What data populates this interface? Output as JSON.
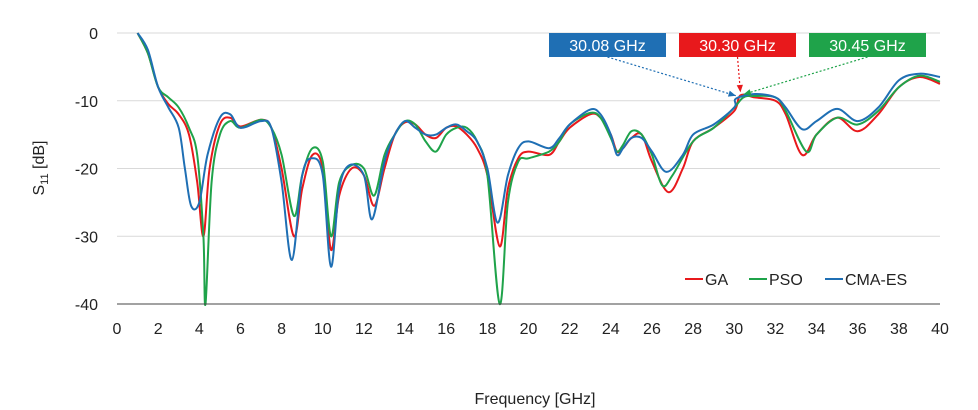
{
  "chart_data": {
    "type": "line",
    "xlabel": "Frequency [GHz]",
    "ylabel_main": "S",
    "ylabel_sub": "11",
    "ylabel_unit": " [dB]",
    "xlim": [
      0,
      40
    ],
    "ylim": [
      -40,
      0
    ],
    "xticks": [
      0,
      2,
      4,
      6,
      8,
      10,
      12,
      14,
      16,
      18,
      20,
      22,
      24,
      26,
      28,
      30,
      32,
      34,
      36,
      38,
      40
    ],
    "yticks": [
      0,
      -10,
      -20,
      -30,
      -40
    ],
    "grid": "horizontal",
    "legend_position": "bottom-right",
    "series": [
      {
        "name": "GA",
        "color": "#e8191c",
        "points": [
          [
            1,
            0
          ],
          [
            1.5,
            -3
          ],
          [
            2,
            -8
          ],
          [
            2.5,
            -10.5
          ],
          [
            3,
            -12
          ],
          [
            3.5,
            -15
          ],
          [
            3.9,
            -22
          ],
          [
            4.2,
            -30
          ],
          [
            4.5,
            -20
          ],
          [
            5,
            -13.5
          ],
          [
            5.5,
            -12.5
          ],
          [
            6,
            -13.8
          ],
          [
            7,
            -12.8
          ],
          [
            7.5,
            -14
          ],
          [
            8,
            -20
          ],
          [
            8.6,
            -30
          ],
          [
            9,
            -23
          ],
          [
            9.5,
            -18
          ],
          [
            10,
            -20
          ],
          [
            10.4,
            -32
          ],
          [
            10.8,
            -24
          ],
          [
            11.4,
            -20
          ],
          [
            12,
            -21
          ],
          [
            12.5,
            -25.5
          ],
          [
            13,
            -20
          ],
          [
            13.5,
            -15
          ],
          [
            14,
            -13.2
          ],
          [
            14.5,
            -13.5
          ],
          [
            15,
            -15
          ],
          [
            15.5,
            -15.5
          ],
          [
            16,
            -14
          ],
          [
            16.5,
            -13.8
          ],
          [
            17,
            -15
          ],
          [
            17.5,
            -17
          ],
          [
            18,
            -21
          ],
          [
            18.6,
            -31.5
          ],
          [
            19,
            -23
          ],
          [
            19.5,
            -18.5
          ],
          [
            20,
            -17.5
          ],
          [
            21,
            -18
          ],
          [
            21.5,
            -16
          ],
          [
            22,
            -14
          ],
          [
            23,
            -12
          ],
          [
            23.5,
            -12.5
          ],
          [
            24,
            -15
          ],
          [
            24.3,
            -17.5
          ],
          [
            24.6,
            -17
          ],
          [
            25,
            -15.5
          ],
          [
            25.5,
            -15
          ],
          [
            26,
            -19
          ],
          [
            26.8,
            -23.5
          ],
          [
            27.5,
            -20
          ],
          [
            28,
            -16
          ],
          [
            29,
            -14
          ],
          [
            30,
            -11.5
          ],
          [
            30.3,
            -9.2
          ],
          [
            31,
            -9.5
          ],
          [
            32,
            -10
          ],
          [
            32.5,
            -12
          ],
          [
            33.3,
            -18
          ],
          [
            34,
            -15
          ],
          [
            35,
            -12.5
          ],
          [
            36,
            -14.5
          ],
          [
            37,
            -12
          ],
          [
            38,
            -8
          ],
          [
            39,
            -6.5
          ],
          [
            40,
            -7.5
          ]
        ]
      },
      {
        "name": "PSO",
        "color": "#1fa34a",
        "points": [
          [
            1,
            0
          ],
          [
            1.5,
            -3
          ],
          [
            2,
            -8
          ],
          [
            2.5,
            -9.5
          ],
          [
            3,
            -11
          ],
          [
            3.5,
            -14
          ],
          [
            3.9,
            -18
          ],
          [
            4.2,
            -30
          ],
          [
            4.3,
            -40
          ],
          [
            4.6,
            -22
          ],
          [
            5,
            -15
          ],
          [
            5.5,
            -13
          ],
          [
            6,
            -14
          ],
          [
            7,
            -12.8
          ],
          [
            7.5,
            -14
          ],
          [
            8,
            -18
          ],
          [
            8.6,
            -27
          ],
          [
            9,
            -21
          ],
          [
            9.5,
            -17
          ],
          [
            10,
            -19
          ],
          [
            10.4,
            -30
          ],
          [
            10.8,
            -22
          ],
          [
            11.4,
            -19.5
          ],
          [
            12,
            -20
          ],
          [
            12.5,
            -24
          ],
          [
            13,
            -18
          ],
          [
            13.5,
            -15
          ],
          [
            14,
            -13
          ],
          [
            14.5,
            -13.5
          ],
          [
            15,
            -16
          ],
          [
            15.5,
            -17.5
          ],
          [
            16,
            -15
          ],
          [
            16.5,
            -14
          ],
          [
            17,
            -14
          ],
          [
            17.5,
            -16
          ],
          [
            18,
            -21
          ],
          [
            18.6,
            -40
          ],
          [
            19,
            -25
          ],
          [
            19.5,
            -19
          ],
          [
            20,
            -18.5
          ],
          [
            21,
            -17.5
          ],
          [
            21.5,
            -16
          ],
          [
            22,
            -13.5
          ],
          [
            23,
            -11.8
          ],
          [
            23.5,
            -12.5
          ],
          [
            24,
            -15.5
          ],
          [
            24.3,
            -17.5
          ],
          [
            24.6,
            -16.5
          ],
          [
            25,
            -14.5
          ],
          [
            25.5,
            -15
          ],
          [
            26,
            -18
          ],
          [
            26.5,
            -22.5
          ],
          [
            27,
            -21
          ],
          [
            28,
            -16
          ],
          [
            29,
            -14
          ],
          [
            30,
            -11
          ],
          [
            30.45,
            -9.5
          ],
          [
            31,
            -9.3
          ],
          [
            32,
            -9.5
          ],
          [
            32.5,
            -11.5
          ],
          [
            33.5,
            -17.5
          ],
          [
            34,
            -15
          ],
          [
            35,
            -12.5
          ],
          [
            36,
            -13.5
          ],
          [
            37,
            -11.5
          ],
          [
            38,
            -8
          ],
          [
            39,
            -6.3
          ],
          [
            40,
            -7.2
          ]
        ]
      },
      {
        "name": "CMA-ES",
        "color": "#1f6fb4",
        "points": [
          [
            1,
            0
          ],
          [
            1.5,
            -2.5
          ],
          [
            2,
            -8
          ],
          [
            2.5,
            -11
          ],
          [
            3,
            -14
          ],
          [
            3.3,
            -20
          ],
          [
            3.6,
            -25.5
          ],
          [
            4,
            -25
          ],
          [
            4.4,
            -18
          ],
          [
            5,
            -12.5
          ],
          [
            5.5,
            -12
          ],
          [
            6,
            -14
          ],
          [
            7,
            -13
          ],
          [
            7.5,
            -14
          ],
          [
            8,
            -22
          ],
          [
            8.5,
            -33.5
          ],
          [
            9,
            -21
          ],
          [
            9.5,
            -18.5
          ],
          [
            10,
            -21
          ],
          [
            10.4,
            -34.5
          ],
          [
            10.8,
            -23
          ],
          [
            11.3,
            -19.5
          ],
          [
            12,
            -21
          ],
          [
            12.4,
            -27.5
          ],
          [
            13,
            -19
          ],
          [
            13.5,
            -15
          ],
          [
            14,
            -13
          ],
          [
            14.5,
            -14
          ],
          [
            15,
            -15
          ],
          [
            15.5,
            -15
          ],
          [
            16,
            -14
          ],
          [
            16.5,
            -13.5
          ],
          [
            17,
            -14.5
          ],
          [
            17.5,
            -16
          ],
          [
            18,
            -20
          ],
          [
            18.5,
            -28
          ],
          [
            19,
            -21
          ],
          [
            19.5,
            -17
          ],
          [
            20,
            -16
          ],
          [
            21,
            -17
          ],
          [
            21.5,
            -15.5
          ],
          [
            22,
            -13.5
          ],
          [
            23,
            -11.3
          ],
          [
            23.5,
            -12
          ],
          [
            24,
            -15
          ],
          [
            24.3,
            -18
          ],
          [
            24.6,
            -17
          ],
          [
            25,
            -15.5
          ],
          [
            25.5,
            -15.5
          ],
          [
            26,
            -17.5
          ],
          [
            26.7,
            -20.5
          ],
          [
            27.5,
            -18
          ],
          [
            28,
            -15
          ],
          [
            29,
            -13.5
          ],
          [
            30,
            -11
          ],
          [
            30.08,
            -9.7
          ],
          [
            31,
            -9
          ],
          [
            32,
            -9.5
          ],
          [
            32.5,
            -11
          ],
          [
            33.3,
            -14.2
          ],
          [
            34,
            -13
          ],
          [
            35,
            -11.2
          ],
          [
            36,
            -13
          ],
          [
            37,
            -11
          ],
          [
            38,
            -7
          ],
          [
            39,
            -6
          ],
          [
            40,
            -6.5
          ]
        ]
      }
    ],
    "annotations": [
      {
        "label": "30.08 GHz",
        "color": "#1f6fb4",
        "x": 30.08,
        "y": -9.7
      },
      {
        "label": "30.30 GHz",
        "color": "#e8191c",
        "x": 30.3,
        "y": -9.2
      },
      {
        "label": "30.45 GHz",
        "color": "#1fa34a",
        "x": 30.45,
        "y": -9.5
      }
    ]
  }
}
